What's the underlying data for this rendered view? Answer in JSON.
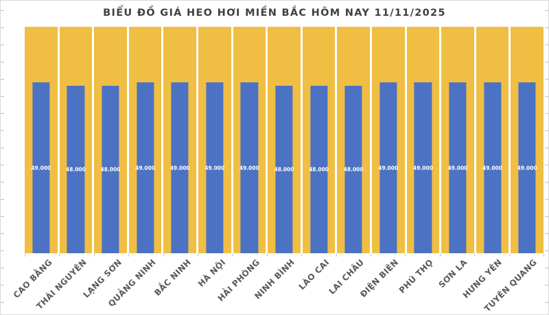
{
  "title": "BIỂU ĐỒ GIÁ HEO HƠI MIỀN BẮC HÔM NAY 11/11/2025",
  "chart_data": {
    "type": "bar",
    "title": "BIỂU ĐỒ GIÁ HEO HƠI MIỀN BẮC HÔM NAY 11/11/2025",
    "categories": [
      "CAO BẰNG",
      "THÁI NGUYÊN",
      "LẠNG SƠN",
      "QUẢNG NINH",
      "BẮC NINH",
      "HÀ NỘI",
      "HẢI PHÒNG",
      "NINH BÌNH",
      "LÀO CAI",
      "LAI CHÂU",
      "ĐIỆN BIÊN",
      "PHÚ THỌ",
      "SƠN LA",
      "HƯNG YÊN",
      "TUYÊN QUANG"
    ],
    "values": [
      49000,
      48000,
      48000,
      49000,
      49000,
      49000,
      49000,
      48000,
      48000,
      48000,
      49000,
      49000,
      49000,
      49000,
      49000
    ],
    "value_labels": [
      "49.000",
      "48.000",
      "48.000",
      "49.000",
      "49.000",
      "49.000",
      "49.000",
      "48.000",
      "48.000",
      "48.000",
      "49.000",
      "49.000",
      "49.000",
      "49.000",
      "49.000"
    ],
    "xlabel": "",
    "ylabel": "",
    "ylim": [
      0,
      65000
    ],
    "grid": false,
    "legend": false,
    "bar_color": "#4c72c4",
    "column_background_color": "#f0be42",
    "value_label_color": "#ffffff",
    "axis_label_color": "#595959",
    "title_color": "#404040",
    "frame_border_color": "#d9d9d9"
  }
}
